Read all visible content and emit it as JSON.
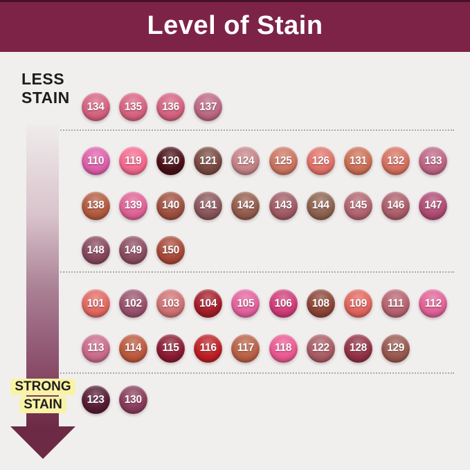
{
  "background_color": "#f0efee",
  "header": {
    "title": "Level of Stain",
    "bg_color": "#7d2347",
    "text_color": "#ffffff"
  },
  "scale": {
    "less_line1": "LESS",
    "less_line2": "STAIN",
    "strong_line1": "STRONG",
    "strong_line2": "STAIN",
    "strong_highlight_color": "#f9f3a5",
    "arrow_gradient_stops": [
      "#efeceb",
      "#d9c3cc",
      "#a97f93",
      "#8a4e6b",
      "#6d2a45"
    ]
  },
  "divider_color": "#9f9d9d",
  "stain_groups": [
    {
      "level": "less-stain",
      "shades": [
        {
          "id": "134",
          "color": "#d4617e"
        },
        {
          "id": "135",
          "color": "#d7627f"
        },
        {
          "id": "136",
          "color": "#d3627f"
        },
        {
          "id": "137",
          "color": "#bb6783"
        }
      ]
    },
    {
      "level": "light-medium-stain",
      "shades": [
        {
          "id": "110",
          "color": "#dd5fab"
        },
        {
          "id": "119",
          "color": "#f4688d"
        },
        {
          "id": "120",
          "color": "#471117"
        },
        {
          "id": "121",
          "color": "#77493f"
        },
        {
          "id": "124",
          "color": "#c48386"
        },
        {
          "id": "125",
          "color": "#ca7561"
        },
        {
          "id": "126",
          "color": "#e07168"
        },
        {
          "id": "131",
          "color": "#ca6f54"
        },
        {
          "id": "132",
          "color": "#d6705f"
        },
        {
          "id": "133",
          "color": "#bd6585"
        },
        {
          "id": "138",
          "color": "#b25a3f"
        },
        {
          "id": "139",
          "color": "#de6295"
        },
        {
          "id": "140",
          "color": "#9d4f3e"
        },
        {
          "id": "141",
          "color": "#88555a"
        },
        {
          "id": "142",
          "color": "#925c4b"
        },
        {
          "id": "143",
          "color": "#9f5a63"
        },
        {
          "id": "144",
          "color": "#8b614d"
        },
        {
          "id": "145",
          "color": "#b0636f"
        },
        {
          "id": "146",
          "color": "#ab5d68"
        },
        {
          "id": "147",
          "color": "#ae4a73"
        },
        {
          "id": "148",
          "color": "#85475d"
        },
        {
          "id": "149",
          "color": "#8a4c61"
        },
        {
          "id": "150",
          "color": "#a64837"
        }
      ]
    },
    {
      "level": "medium-strong-stain",
      "shades": [
        {
          "id": "101",
          "color": "#e16760"
        },
        {
          "id": "102",
          "color": "#98506c"
        },
        {
          "id": "103",
          "color": "#cf7172"
        },
        {
          "id": "104",
          "color": "#a31c28"
        },
        {
          "id": "105",
          "color": "#e3619d"
        },
        {
          "id": "106",
          "color": "#d03b78"
        },
        {
          "id": "108",
          "color": "#8a4435"
        },
        {
          "id": "109",
          "color": "#e0655c"
        },
        {
          "id": "111",
          "color": "#b5626f"
        },
        {
          "id": "112",
          "color": "#e06196"
        },
        {
          "id": "113",
          "color": "#c96a8b"
        },
        {
          "id": "114",
          "color": "#bb583c"
        },
        {
          "id": "115",
          "color": "#891a32"
        },
        {
          "id": "116",
          "color": "#bb1f25"
        },
        {
          "id": "117",
          "color": "#b86045"
        },
        {
          "id": "118",
          "color": "#ea5892"
        },
        {
          "id": "122",
          "color": "#a75b63"
        },
        {
          "id": "128",
          "color": "#903145"
        },
        {
          "id": "129",
          "color": "#97584f"
        }
      ]
    },
    {
      "level": "strong-stain",
      "shades": [
        {
          "id": "123",
          "color": "#541c33"
        },
        {
          "id": "130",
          "color": "#883c5b"
        }
      ]
    }
  ]
}
